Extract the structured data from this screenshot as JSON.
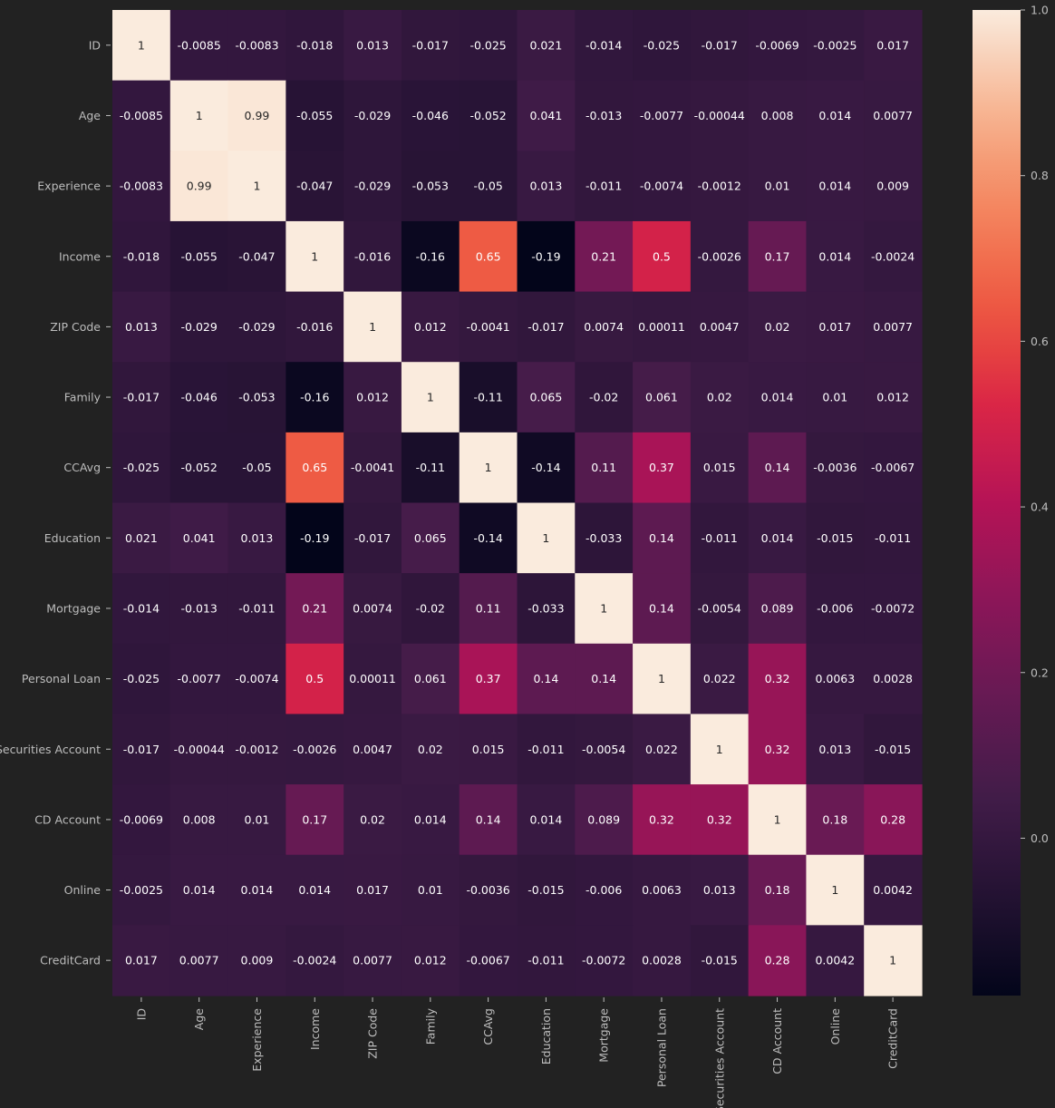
{
  "chart_data": {
    "type": "heatmap",
    "title": "",
    "xlabel": "",
    "ylabel": "",
    "colormap": "rocket",
    "background": "#222222",
    "labels": [
      "ID",
      "Age",
      "Experience",
      "Income",
      "ZIP Code",
      "Family",
      "CCAvg",
      "Education",
      "Mortgage",
      "Personal Loan",
      "Securities Account",
      "CD Account",
      "Online",
      "CreditCard"
    ],
    "cell_labels": [
      [
        "1",
        "-0.0085",
        "-0.0083",
        "-0.018",
        "0.013",
        "-0.017",
        "-0.025",
        "0.021",
        "-0.014",
        "-0.025",
        "-0.017",
        "-0.0069",
        "-0.0025",
        "0.017"
      ],
      [
        "-0.0085",
        "1",
        "0.99",
        "-0.055",
        "-0.029",
        "-0.046",
        "-0.052",
        "0.041",
        "-0.013",
        "-0.0077",
        "-0.00044",
        "0.008",
        "0.014",
        "0.0077"
      ],
      [
        "-0.0083",
        "0.99",
        "1",
        "-0.047",
        "-0.029",
        "-0.053",
        "-0.05",
        "0.013",
        "-0.011",
        "-0.0074",
        "-0.0012",
        "0.01",
        "0.014",
        "0.009"
      ],
      [
        "-0.018",
        "-0.055",
        "-0.047",
        "1",
        "-0.016",
        "-0.16",
        "0.65",
        "-0.19",
        "0.21",
        "0.5",
        "-0.0026",
        "0.17",
        "0.014",
        "-0.0024"
      ],
      [
        "0.013",
        "-0.029",
        "-0.029",
        "-0.016",
        "1",
        "0.012",
        "-0.0041",
        "-0.017",
        "0.0074",
        "0.00011",
        "0.0047",
        "0.02",
        "0.017",
        "0.0077"
      ],
      [
        "-0.017",
        "-0.046",
        "-0.053",
        "-0.16",
        "0.012",
        "1",
        "-0.11",
        "0.065",
        "-0.02",
        "0.061",
        "0.02",
        "0.014",
        "0.01",
        "0.012"
      ],
      [
        "-0.025",
        "-0.052",
        "-0.05",
        "0.65",
        "-0.0041",
        "-0.11",
        "1",
        "-0.14",
        "0.11",
        "0.37",
        "0.015",
        "0.14",
        "-0.0036",
        "-0.0067"
      ],
      [
        "0.021",
        "0.041",
        "0.013",
        "-0.19",
        "-0.017",
        "0.065",
        "-0.14",
        "1",
        "-0.033",
        "0.14",
        "-0.011",
        "0.014",
        "-0.015",
        "-0.011"
      ],
      [
        "-0.014",
        "-0.013",
        "-0.011",
        "0.21",
        "0.0074",
        "-0.02",
        "0.11",
        "-0.033",
        "1",
        "0.14",
        "-0.0054",
        "0.089",
        "-0.006",
        "-0.0072"
      ],
      [
        "-0.025",
        "-0.0077",
        "-0.0074",
        "0.5",
        "0.00011",
        "0.061",
        "0.37",
        "0.14",
        "0.14",
        "1",
        "0.022",
        "0.32",
        "0.0063",
        "0.0028"
      ],
      [
        "-0.017",
        "-0.00044",
        "-0.0012",
        "-0.0026",
        "0.0047",
        "0.02",
        "0.015",
        "-0.011",
        "-0.0054",
        "0.022",
        "1",
        "0.32",
        "0.013",
        "-0.015"
      ],
      [
        "-0.0069",
        "0.008",
        "0.01",
        "0.17",
        "0.02",
        "0.014",
        "0.14",
        "0.014",
        "0.089",
        "0.32",
        "0.32",
        "1",
        "0.18",
        "0.28"
      ],
      [
        "-0.0025",
        "0.014",
        "0.014",
        "0.014",
        "0.017",
        "0.01",
        "-0.0036",
        "-0.015",
        "-0.006",
        "0.0063",
        "0.013",
        "0.18",
        "1",
        "0.0042"
      ],
      [
        "0.017",
        "0.0077",
        "0.009",
        "-0.0024",
        "0.0077",
        "0.012",
        "-0.0067",
        "-0.011",
        "-0.0072",
        "0.0028",
        "-0.015",
        "0.28",
        "0.0042",
        "1"
      ]
    ],
    "vmin": -0.19,
    "vmax": 1.0,
    "colorbar_ticks": [
      "0.0",
      "0.2",
      "0.4",
      "0.6",
      "0.8",
      "1.0"
    ],
    "colorbar_tick_values": [
      0.0,
      0.2,
      0.4,
      0.6,
      0.8,
      1.0
    ]
  }
}
